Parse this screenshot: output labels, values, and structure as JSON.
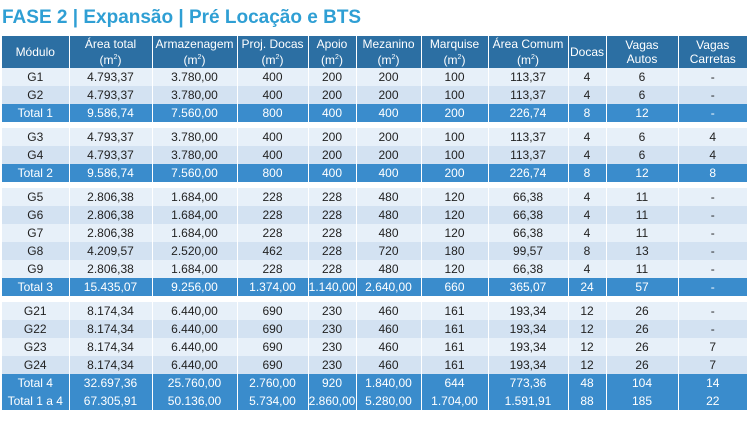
{
  "title": "FASE 2 | Expansão | Pré Locação e BTS",
  "headers": [
    {
      "line1": "Módulo",
      "line2": ""
    },
    {
      "line1": "Área total",
      "line2": "(m",
      "sup": "2",
      "close": ")"
    },
    {
      "line1": "Armazenagem",
      "line2": "(m",
      "sup": "2",
      "close": ")"
    },
    {
      "line1": "Proj. Docas",
      "line2": "(m",
      "sup": "2",
      "close": ")"
    },
    {
      "line1": "Apoio",
      "line2": "(m",
      "sup": "2",
      "close": ")"
    },
    {
      "line1": "Mezanino",
      "line2": "(m",
      "sup": "2",
      "close": ")"
    },
    {
      "line1": "Marquise",
      "line2": "(m",
      "sup": "2",
      "close": ")"
    },
    {
      "line1": "Área Comum",
      "line2": "(m",
      "sup": "2",
      "close": ")"
    },
    {
      "line1": "Docas",
      "line2": ""
    },
    {
      "line1": "Vagas",
      "line2": "Autos"
    },
    {
      "line1": "Vagas",
      "line2": "Carretas"
    }
  ],
  "groups": [
    {
      "rows": [
        [
          "G1",
          "4.793,37",
          "3.780,00",
          "400",
          "200",
          "200",
          "100",
          "113,37",
          "4",
          "6",
          "-"
        ],
        [
          "G2",
          "4.793,37",
          "3.780,00",
          "400",
          "200",
          "200",
          "100",
          "113,37",
          "4",
          "6",
          "-"
        ]
      ],
      "total": [
        "Total 1",
        "9.586,74",
        "7.560,00",
        "800",
        "400",
        "400",
        "200",
        "226,74",
        "8",
        "12",
        "-"
      ]
    },
    {
      "rows": [
        [
          "G3",
          "4.793,37",
          "3.780,00",
          "400",
          "200",
          "200",
          "100",
          "113,37",
          "4",
          "6",
          "4"
        ],
        [
          "G4",
          "4.793,37",
          "3.780,00",
          "400",
          "200",
          "200",
          "100",
          "113,37",
          "4",
          "6",
          "4"
        ]
      ],
      "total": [
        "Total 2",
        "9.586,74",
        "7.560,00",
        "800",
        "400",
        "400",
        "200",
        "226,74",
        "8",
        "12",
        "8"
      ]
    },
    {
      "rows": [
        [
          "G5",
          "2.806,38",
          "1.684,00",
          "228",
          "228",
          "480",
          "120",
          "66,38",
          "4",
          "11",
          "-"
        ],
        [
          "G6",
          "2.806,38",
          "1.684,00",
          "228",
          "228",
          "480",
          "120",
          "66,38",
          "4",
          "11",
          "-"
        ],
        [
          "G7",
          "2.806,38",
          "1.684,00",
          "228",
          "228",
          "480",
          "120",
          "66,38",
          "4",
          "11",
          "-"
        ],
        [
          "G8",
          "4.209,57",
          "2.520,00",
          "462",
          "228",
          "720",
          "180",
          "99,57",
          "8",
          "13",
          "-"
        ],
        [
          "G9",
          "2.806,38",
          "1.684,00",
          "228",
          "228",
          "480",
          "120",
          "66,38",
          "4",
          "11",
          "-"
        ]
      ],
      "total": [
        "Total 3",
        "15.435,07",
        "9.256,00",
        "1.374,00",
        "1.140,00",
        "2.640,00",
        "660",
        "365,07",
        "24",
        "57",
        "-"
      ]
    },
    {
      "rows": [
        [
          "G21",
          "8.174,34",
          "6.440,00",
          "690",
          "230",
          "460",
          "161",
          "193,34",
          "12",
          "26",
          "-"
        ],
        [
          "G22",
          "8.174,34",
          "6.440,00",
          "690",
          "230",
          "460",
          "161",
          "193,34",
          "12",
          "26",
          "-"
        ],
        [
          "G23",
          "8.174,34",
          "6.440,00",
          "690",
          "230",
          "460",
          "161",
          "193,34",
          "12",
          "26",
          "7"
        ],
        [
          "G24",
          "8.174,34",
          "6.440,00",
          "690",
          "230",
          "460",
          "161",
          "193,34",
          "12",
          "26",
          "7"
        ]
      ],
      "total": [
        "Total 4",
        "32.697,36",
        "25.760,00",
        "2.760,00",
        "920",
        "1.840,00",
        "644",
        "773,36",
        "48",
        "104",
        "14"
      ]
    }
  ],
  "grand_total": [
    "Total 1 a 4",
    "67.305,91",
    "50.136,00",
    "5.734,00",
    "2.860,00",
    "5.280,00",
    "1.704,00",
    "1.591,91",
    "88",
    "185",
    "22"
  ],
  "colors": {
    "title": "#2f9fd4",
    "header_bg": "#2c6fa3",
    "total_bg": "#3a8ccc",
    "row_light": "#e7f0f9",
    "row_dark": "#d3e2f2"
  }
}
